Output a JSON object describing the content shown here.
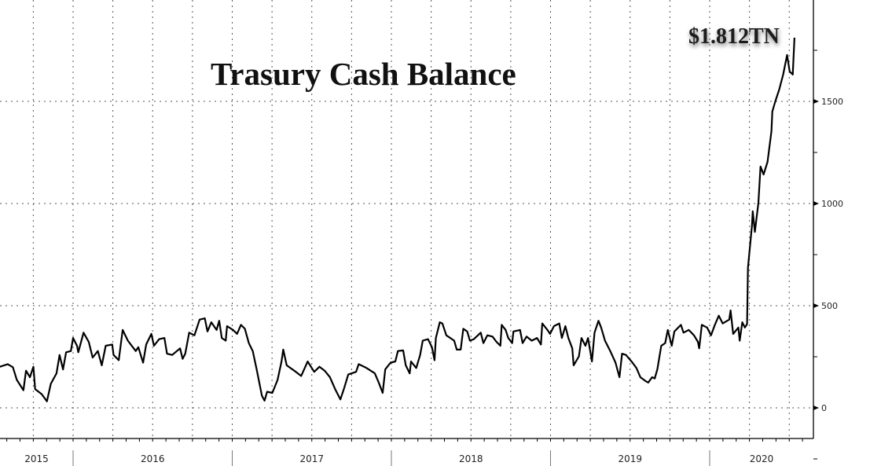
{
  "chart_data": {
    "type": "line",
    "title": "Trasury Cash Balance",
    "annotation": "$1.812TN",
    "xlabel": "",
    "ylabel": "",
    "y_axis_side": "right",
    "ylim": [
      -150,
      2000
    ],
    "yticks": [
      0,
      500,
      1000,
      1500
    ],
    "ytick_labels": [
      "0",
      "500",
      "1000",
      "1500"
    ],
    "year_labels": [
      "2015",
      "2016",
      "2017",
      "2018",
      "2019",
      "2020"
    ],
    "xlim": [
      "2015-07-17",
      "2020-08-31"
    ],
    "grid": "dotted, quarterly vertical and every 500 horizontal",
    "line_color": "#000000",
    "series": [
      {
        "points": [
          [
            "2015-07-17",
            201
          ],
          [
            "2015-08-04",
            214
          ],
          [
            "2015-08-16",
            199
          ],
          [
            "2015-08-25",
            137
          ],
          [
            "2015-09-09",
            86
          ],
          [
            "2015-09-15",
            182
          ],
          [
            "2015-09-24",
            150
          ],
          [
            "2015-10-02",
            201
          ],
          [
            "2015-10-06",
            92
          ],
          [
            "2015-10-21",
            67
          ],
          [
            "2015-11-02",
            32
          ],
          [
            "2015-11-11",
            118
          ],
          [
            "2015-11-24",
            169
          ],
          [
            "2015-12-01",
            259
          ],
          [
            "2015-12-09",
            188
          ],
          [
            "2015-12-16",
            272
          ],
          [
            "2015-12-27",
            278
          ],
          [
            "2016-01-01",
            342
          ],
          [
            "2016-01-10",
            304
          ],
          [
            "2016-01-13",
            272
          ],
          [
            "2016-01-25",
            368
          ],
          [
            "2016-02-06",
            323
          ],
          [
            "2016-02-15",
            246
          ],
          [
            "2016-02-27",
            278
          ],
          [
            "2016-03-07",
            208
          ],
          [
            "2016-03-16",
            304
          ],
          [
            "2016-03-31",
            310
          ],
          [
            "2016-04-03",
            259
          ],
          [
            "2016-04-15",
            233
          ],
          [
            "2016-04-24",
            381
          ],
          [
            "2016-05-06",
            329
          ],
          [
            "2016-05-24",
            278
          ],
          [
            "2016-05-30",
            297
          ],
          [
            "2016-06-10",
            221
          ],
          [
            "2016-06-17",
            310
          ],
          [
            "2016-06-29",
            362
          ],
          [
            "2016-07-05",
            304
          ],
          [
            "2016-07-17",
            336
          ],
          [
            "2016-07-29",
            342
          ],
          [
            "2016-08-04",
            265
          ],
          [
            "2016-08-16",
            259
          ],
          [
            "2016-09-03",
            291
          ],
          [
            "2016-09-09",
            240
          ],
          [
            "2016-09-15",
            265
          ],
          [
            "2016-09-24",
            368
          ],
          [
            "2016-10-06",
            355
          ],
          [
            "2016-10-18",
            432
          ],
          [
            "2016-10-30",
            438
          ],
          [
            "2016-11-05",
            374
          ],
          [
            "2016-11-14",
            419
          ],
          [
            "2016-11-26",
            381
          ],
          [
            "2016-12-02",
            426
          ],
          [
            "2016-12-08",
            342
          ],
          [
            "2016-12-17",
            329
          ],
          [
            "2016-12-20",
            400
          ],
          [
            "2017-01-03",
            381
          ],
          [
            "2017-01-12",
            362
          ],
          [
            "2017-01-21",
            406
          ],
          [
            "2017-01-30",
            387
          ],
          [
            "2017-02-08",
            317
          ],
          [
            "2017-02-17",
            278
          ],
          [
            "2017-02-26",
            188
          ],
          [
            "2017-03-10",
            60
          ],
          [
            "2017-03-16",
            35
          ],
          [
            "2017-03-22",
            79
          ],
          [
            "2017-04-03",
            73
          ],
          [
            "2017-04-15",
            137
          ],
          [
            "2017-04-24",
            227
          ],
          [
            "2017-04-28",
            285
          ],
          [
            "2017-05-06",
            208
          ],
          [
            "2017-05-27",
            176
          ],
          [
            "2017-06-08",
            156
          ],
          [
            "2017-06-23",
            227
          ],
          [
            "2017-07-08",
            176
          ],
          [
            "2017-07-20",
            201
          ],
          [
            "2017-08-01",
            182
          ],
          [
            "2017-08-13",
            150
          ],
          [
            "2017-08-25",
            92
          ],
          [
            "2017-09-06",
            41
          ],
          [
            "2017-09-15",
            99
          ],
          [
            "2017-09-24",
            163
          ],
          [
            "2017-10-12",
            176
          ],
          [
            "2017-10-18",
            214
          ],
          [
            "2017-11-05",
            195
          ],
          [
            "2017-11-24",
            169
          ],
          [
            "2017-12-03",
            124
          ],
          [
            "2017-12-12",
            73
          ],
          [
            "2017-12-18",
            188
          ],
          [
            "2017-12-30",
            221
          ],
          [
            "2018-01-10",
            227
          ],
          [
            "2018-01-16",
            278
          ],
          [
            "2018-01-28",
            281
          ],
          [
            "2018-02-03",
            208
          ],
          [
            "2018-02-12",
            169
          ],
          [
            "2018-02-15",
            227
          ],
          [
            "2018-02-27",
            195
          ],
          [
            "2018-03-08",
            259
          ],
          [
            "2018-03-14",
            329
          ],
          [
            "2018-03-26",
            336
          ],
          [
            "2018-04-04",
            297
          ],
          [
            "2018-04-10",
            233
          ],
          [
            "2018-04-13",
            342
          ],
          [
            "2018-04-22",
            419
          ],
          [
            "2018-04-28",
            413
          ],
          [
            "2018-05-07",
            355
          ],
          [
            "2018-05-25",
            329
          ],
          [
            "2018-05-31",
            285
          ],
          [
            "2018-06-09",
            285
          ],
          [
            "2018-06-15",
            387
          ],
          [
            "2018-06-24",
            374
          ],
          [
            "2018-06-30",
            329
          ],
          [
            "2018-07-09",
            336
          ],
          [
            "2018-07-25",
            368
          ],
          [
            "2018-07-31",
            317
          ],
          [
            "2018-08-09",
            355
          ],
          [
            "2018-08-21",
            349
          ],
          [
            "2018-08-30",
            323
          ],
          [
            "2018-09-08",
            304
          ],
          [
            "2018-09-11",
            406
          ],
          [
            "2018-09-20",
            381
          ],
          [
            "2018-09-26",
            342
          ],
          [
            "2018-10-05",
            317
          ],
          [
            "2018-10-08",
            374
          ],
          [
            "2018-10-23",
            381
          ],
          [
            "2018-10-29",
            317
          ],
          [
            "2018-11-07",
            349
          ],
          [
            "2018-11-19",
            329
          ],
          [
            "2018-12-01",
            342
          ],
          [
            "2018-12-10",
            310
          ],
          [
            "2018-12-13",
            413
          ],
          [
            "2018-12-25",
            381
          ],
          [
            "2018-12-31",
            362
          ],
          [
            "2019-01-09",
            400
          ],
          [
            "2019-01-21",
            413
          ],
          [
            "2019-01-27",
            342
          ],
          [
            "2019-02-04",
            400
          ],
          [
            "2019-02-11",
            342
          ],
          [
            "2019-02-20",
            291
          ],
          [
            "2019-02-23",
            208
          ],
          [
            "2019-03-07",
            252
          ],
          [
            "2019-03-13",
            342
          ],
          [
            "2019-03-22",
            304
          ],
          [
            "2019-03-28",
            342
          ],
          [
            "2019-04-06",
            227
          ],
          [
            "2019-04-12",
            368
          ],
          [
            "2019-04-21",
            426
          ],
          [
            "2019-04-27",
            393
          ],
          [
            "2019-05-06",
            329
          ],
          [
            "2019-05-18",
            278
          ],
          [
            "2019-05-30",
            221
          ],
          [
            "2019-06-08",
            150
          ],
          [
            "2019-06-14",
            265
          ],
          [
            "2019-06-23",
            259
          ],
          [
            "2019-07-08",
            221
          ],
          [
            "2019-07-17",
            195
          ],
          [
            "2019-07-26",
            150
          ],
          [
            "2019-08-07",
            131
          ],
          [
            "2019-08-13",
            124
          ],
          [
            "2019-08-22",
            150
          ],
          [
            "2019-08-28",
            144
          ],
          [
            "2019-09-03",
            188
          ],
          [
            "2019-09-12",
            304
          ],
          [
            "2019-09-21",
            317
          ],
          [
            "2019-09-27",
            381
          ],
          [
            "2019-10-06",
            304
          ],
          [
            "2019-10-12",
            374
          ],
          [
            "2019-10-27",
            406
          ],
          [
            "2019-11-02",
            368
          ],
          [
            "2019-11-14",
            381
          ],
          [
            "2019-11-26",
            355
          ],
          [
            "2019-12-05",
            323
          ],
          [
            "2019-12-08",
            291
          ],
          [
            "2019-12-14",
            406
          ],
          [
            "2019-12-26",
            393
          ],
          [
            "2020-01-04",
            355
          ],
          [
            "2020-01-13",
            406
          ],
          [
            "2020-01-22",
            451
          ],
          [
            "2020-01-31",
            413
          ],
          [
            "2020-02-15",
            432
          ],
          [
            "2020-02-18",
            477
          ],
          [
            "2020-02-24",
            362
          ],
          [
            "2020-03-07",
            393
          ],
          [
            "2020-03-10",
            329
          ],
          [
            "2020-03-16",
            419
          ],
          [
            "2020-03-22",
            393
          ],
          [
            "2020-03-27",
            410
          ],
          [
            "2020-03-29",
            685
          ],
          [
            "2020-04-07",
            888
          ],
          [
            "2020-04-09",
            962
          ],
          [
            "2020-04-14",
            861
          ],
          [
            "2020-04-22",
            1004
          ],
          [
            "2020-04-27",
            1181
          ],
          [
            "2020-05-04",
            1142
          ],
          [
            "2020-05-13",
            1204
          ],
          [
            "2020-05-22",
            1354
          ],
          [
            "2020-05-24",
            1450
          ],
          [
            "2020-05-31",
            1500
          ],
          [
            "2020-06-09",
            1558
          ],
          [
            "2020-06-18",
            1631
          ],
          [
            "2020-06-27",
            1727
          ],
          [
            "2020-07-03",
            1646
          ],
          [
            "2020-07-10",
            1631
          ],
          [
            "2020-07-14",
            1812
          ]
        ]
      }
    ]
  }
}
